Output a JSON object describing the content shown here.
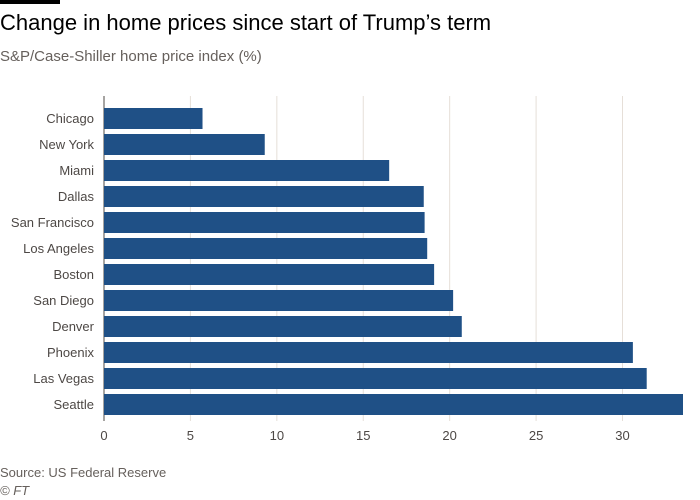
{
  "header": {
    "title": "Change in home prices since start of Trump’s term",
    "subtitle": "S&P/Case-Shiller home price index (%)"
  },
  "footer": {
    "source": "Source: US Federal Reserve",
    "credit": "© FT"
  },
  "colors": {
    "bar": "#1f5086",
    "grid": "#e6dfd8",
    "axis": "#4d4845"
  },
  "chart_data": {
    "type": "bar",
    "orientation": "horizontal",
    "title": "Change in home prices since start of Trump’s term",
    "subtitle": "S&P/Case-Shiller home price index (%)",
    "xlabel": "",
    "ylabel": "",
    "xlim": [
      0,
      33.5
    ],
    "xticks": [
      0,
      5,
      10,
      15,
      20,
      25,
      30
    ],
    "grid": true,
    "categories": [
      "Chicago",
      "New York",
      "Miami",
      "Dallas",
      "San Francisco",
      "Los Angeles",
      "Boston",
      "San Diego",
      "Denver",
      "Phoenix",
      "Las Vegas",
      "Seattle"
    ],
    "values": [
      5.7,
      9.3,
      16.5,
      18.5,
      18.55,
      18.7,
      19.1,
      20.2,
      20.7,
      30.6,
      31.4,
      33.5
    ]
  }
}
